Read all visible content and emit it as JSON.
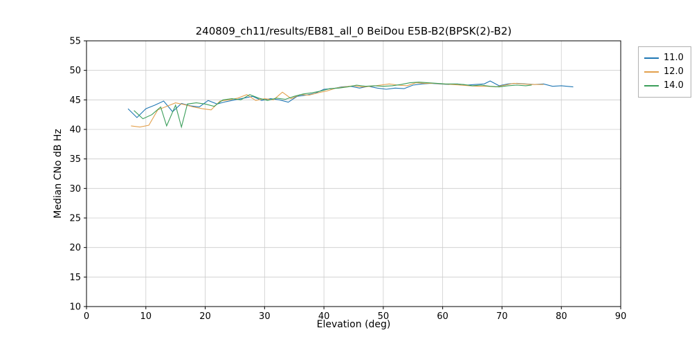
{
  "chart_data": {
    "type": "line",
    "title": "240809_ch11/results/EB81_all_0 BeiDou E5B-B2(BPSK(2)-B2)",
    "xlabel": "Elevation (deg)",
    "ylabel": "Median CNo dB Hz",
    "xlim": [
      0,
      90
    ],
    "ylim": [
      10,
      55
    ],
    "xticks": [
      0,
      10,
      20,
      30,
      40,
      50,
      60,
      70,
      80,
      90
    ],
    "yticks": [
      10,
      15,
      20,
      25,
      30,
      35,
      40,
      45,
      50,
      55
    ],
    "grid": true,
    "grid_color": "#cccccc",
    "spine_color": "#000000",
    "legend": {
      "position": "upper right outside"
    },
    "series": [
      {
        "name": "11.0",
        "color": "#1f77b4",
        "points": [
          [
            7,
            43.5
          ],
          [
            8.5,
            42.0
          ],
          [
            10,
            43.5
          ],
          [
            11.5,
            44.1
          ],
          [
            13,
            44.8
          ],
          [
            14.5,
            43.0
          ],
          [
            16,
            44.4
          ],
          [
            17.5,
            44.0
          ],
          [
            19,
            43.8
          ],
          [
            20.5,
            44.9
          ],
          [
            22,
            44.3
          ],
          [
            23.5,
            44.7
          ],
          [
            25,
            45.0
          ],
          [
            26.5,
            45.3
          ],
          [
            28,
            45.6
          ],
          [
            29.5,
            44.9
          ],
          [
            31,
            45.2
          ],
          [
            32.5,
            45.0
          ],
          [
            34,
            44.6
          ],
          [
            35.5,
            45.6
          ],
          [
            37,
            45.8
          ],
          [
            38.5,
            46.1
          ],
          [
            40,
            46.8
          ],
          [
            41.5,
            46.9
          ],
          [
            43,
            47.2
          ],
          [
            44.5,
            47.3
          ],
          [
            46,
            47.0
          ],
          [
            47.5,
            47.3
          ],
          [
            49,
            47.0
          ],
          [
            50.5,
            46.8
          ],
          [
            52,
            47.0
          ],
          [
            53.5,
            46.9
          ],
          [
            55,
            47.5
          ],
          [
            56.5,
            47.7
          ],
          [
            58,
            47.8
          ],
          [
            59.5,
            47.7
          ],
          [
            61,
            47.6
          ],
          [
            62.5,
            47.7
          ],
          [
            64,
            47.5
          ],
          [
            65.5,
            47.6
          ],
          [
            67,
            47.7
          ],
          [
            68,
            48.2
          ],
          [
            69.5,
            47.4
          ],
          [
            71,
            47.7
          ],
          [
            72.5,
            47.8
          ],
          [
            74,
            47.7
          ],
          [
            75.5,
            47.6
          ],
          [
            77,
            47.7
          ],
          [
            78.5,
            47.3
          ],
          [
            80,
            47.4
          ],
          [
            82,
            47.2
          ]
        ]
      },
      {
        "name": "12.0",
        "color": "#e3a04c",
        "points": [
          [
            7.5,
            40.6
          ],
          [
            9,
            40.4
          ],
          [
            10.5,
            40.7
          ],
          [
            12,
            43.3
          ],
          [
            13.5,
            43.9
          ],
          [
            15,
            44.5
          ],
          [
            16.5,
            44.2
          ],
          [
            18,
            43.8
          ],
          [
            19.5,
            43.5
          ],
          [
            21,
            43.3
          ],
          [
            22.5,
            44.8
          ],
          [
            24,
            45.0
          ],
          [
            25.5,
            45.3
          ],
          [
            27,
            45.9
          ],
          [
            28.5,
            44.9
          ],
          [
            30,
            45.2
          ],
          [
            31.5,
            45.0
          ],
          [
            33,
            46.3
          ],
          [
            34.5,
            45.2
          ],
          [
            36,
            45.9
          ],
          [
            37.5,
            45.8
          ],
          [
            39,
            46.2
          ],
          [
            40.5,
            46.5
          ],
          [
            42,
            47.0
          ],
          [
            43.5,
            47.2
          ],
          [
            45,
            47.4
          ],
          [
            46.5,
            47.2
          ],
          [
            48,
            47.3
          ],
          [
            49.5,
            47.5
          ],
          [
            51,
            47.7
          ],
          [
            52.5,
            47.5
          ],
          [
            54,
            47.4
          ],
          [
            55.5,
            47.9
          ],
          [
            57,
            47.8
          ],
          [
            58.5,
            47.8
          ],
          [
            60,
            47.7
          ],
          [
            61.5,
            47.6
          ],
          [
            63,
            47.5
          ],
          [
            64.5,
            47.4
          ],
          [
            66,
            47.3
          ],
          [
            67.5,
            47.3
          ],
          [
            69,
            47.2
          ],
          [
            70.5,
            47.5
          ],
          [
            72,
            47.8
          ],
          [
            73.5,
            47.7
          ],
          [
            75,
            47.6
          ],
          [
            77,
            47.6
          ]
        ]
      },
      {
        "name": "14.0",
        "color": "#3b9e5a",
        "points": [
          [
            8,
            43.2
          ],
          [
            9.5,
            41.8
          ],
          [
            11,
            42.5
          ],
          [
            12.5,
            43.8
          ],
          [
            13.5,
            40.6
          ],
          [
            15,
            44.1
          ],
          [
            16,
            40.4
          ],
          [
            17,
            44.3
          ],
          [
            18.5,
            44.5
          ],
          [
            20,
            44.3
          ],
          [
            21.5,
            43.9
          ],
          [
            23,
            45.0
          ],
          [
            24.5,
            45.2
          ],
          [
            26,
            45.0
          ],
          [
            27.5,
            45.9
          ],
          [
            29,
            45.3
          ],
          [
            30.5,
            44.9
          ],
          [
            32,
            45.3
          ],
          [
            33.5,
            45.1
          ],
          [
            35,
            45.6
          ],
          [
            36.5,
            46.0
          ],
          [
            38,
            46.2
          ],
          [
            39.5,
            46.5
          ],
          [
            41,
            46.9
          ],
          [
            42.5,
            47.0
          ],
          [
            44,
            47.2
          ],
          [
            45.5,
            47.5
          ],
          [
            47,
            47.3
          ],
          [
            48.5,
            47.4
          ],
          [
            50,
            47.3
          ],
          [
            51.5,
            47.4
          ],
          [
            53,
            47.6
          ],
          [
            54.5,
            47.9
          ],
          [
            56,
            48.0
          ],
          [
            57.5,
            47.9
          ],
          [
            59,
            47.8
          ],
          [
            60.5,
            47.7
          ],
          [
            62,
            47.7
          ],
          [
            63.5,
            47.6
          ],
          [
            65,
            47.4
          ],
          [
            66.5,
            47.5
          ],
          [
            68,
            47.3
          ],
          [
            69.5,
            47.2
          ],
          [
            71,
            47.4
          ],
          [
            72.5,
            47.5
          ],
          [
            74,
            47.4
          ],
          [
            75,
            47.5
          ]
        ]
      }
    ]
  }
}
